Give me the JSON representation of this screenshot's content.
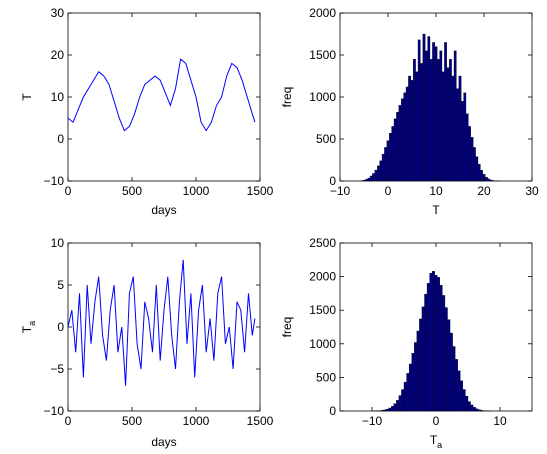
{
  "chart_data": [
    {
      "type": "line",
      "xlabel": "days",
      "ylabel": "T",
      "xlim": [
        0,
        1500
      ],
      "ylim": [
        -10,
        30
      ],
      "xticks": [
        "0",
        "500",
        "1000",
        "1500"
      ],
      "yticks": [
        "−10",
        "0",
        "10",
        "20",
        "30"
      ],
      "grid": false,
      "series_color": "#0000ff",
      "x": [
        0,
        40,
        80,
        120,
        160,
        200,
        240,
        280,
        320,
        360,
        400,
        440,
        480,
        520,
        560,
        600,
        640,
        680,
        720,
        760,
        800,
        840,
        880,
        920,
        960,
        1000,
        1040,
        1080,
        1120,
        1160,
        1200,
        1240,
        1280,
        1320,
        1360,
        1400,
        1440,
        1460
      ],
      "y": [
        5,
        4,
        7,
        10,
        12,
        14,
        16,
        15,
        13,
        9,
        5,
        2,
        3,
        6,
        10,
        13,
        14,
        15,
        14,
        11,
        8,
        12,
        19,
        18,
        14,
        10,
        4,
        2,
        4,
        8,
        10,
        15,
        18,
        17,
        14,
        10,
        6,
        4
      ]
    },
    {
      "type": "bar",
      "xlabel": "T",
      "ylabel": "freq",
      "xlim": [
        -10,
        30
      ],
      "ylim": [
        0,
        2000
      ],
      "xticks": [
        "−10",
        "0",
        "10",
        "20",
        "30"
      ],
      "yticks": [
        "0",
        "500",
        "1000",
        "1500",
        "2000"
      ],
      "grid": false,
      "bar_color": "#000080",
      "bin_width": 0.5,
      "x": [
        -5.5,
        -5,
        -4.5,
        -4,
        -3.5,
        -3,
        -2.5,
        -2,
        -1.5,
        -1,
        -0.5,
        0,
        0.5,
        1,
        1.5,
        2,
        2.5,
        3,
        3.5,
        4,
        4.5,
        5,
        5.5,
        6,
        6.5,
        7,
        7.5,
        8,
        8.5,
        9,
        9.5,
        10,
        10.5,
        11,
        11.5,
        12,
        12.5,
        13,
        13.5,
        14,
        14.5,
        15,
        15.5,
        16,
        16.5,
        17,
        17.5,
        18,
        18.5,
        19,
        19.5,
        20,
        20.5,
        21,
        21.5,
        22,
        22.5,
        23
      ],
      "values": [
        3,
        10,
        20,
        35,
        60,
        90,
        130,
        180,
        240,
        320,
        400,
        480,
        570,
        650,
        740,
        820,
        900,
        980,
        1050,
        1120,
        1250,
        1200,
        1450,
        1300,
        1680,
        1400,
        1750,
        1550,
        1720,
        1450,
        1650,
        1600,
        1450,
        1550,
        1300,
        1650,
        1350,
        1450,
        1250,
        1550,
        1100,
        1250,
        950,
        1050,
        800,
        650,
        520,
        400,
        290,
        200,
        130,
        80,
        45,
        25,
        12,
        6,
        3,
        1
      ]
    },
    {
      "type": "line",
      "xlabel": "days",
      "ylabel": "T",
      "ylabel_subscript": "a",
      "xlim": [
        0,
        1500
      ],
      "ylim": [
        -10,
        10
      ],
      "xticks": [
        "0",
        "500",
        "1000",
        "1500"
      ],
      "yticks": [
        "−10",
        "−5",
        "0",
        "5",
        "10"
      ],
      "grid": false,
      "series_color": "#0000ff",
      "x": [
        0,
        30,
        60,
        90,
        120,
        150,
        180,
        210,
        240,
        270,
        300,
        330,
        360,
        390,
        420,
        450,
        480,
        510,
        540,
        570,
        600,
        630,
        660,
        690,
        720,
        750,
        780,
        810,
        840,
        870,
        900,
        930,
        960,
        990,
        1020,
        1050,
        1080,
        1110,
        1140,
        1170,
        1200,
        1230,
        1260,
        1290,
        1320,
        1350,
        1380,
        1410,
        1440,
        1460
      ],
      "y": [
        0,
        2,
        -3,
        4,
        -6,
        5,
        -2,
        3,
        6,
        -1,
        -4,
        2,
        5,
        -3,
        0,
        -7,
        4,
        6,
        -2,
        -5,
        3,
        1,
        -3,
        5,
        -4,
        2,
        6,
        -1,
        -5,
        3,
        8,
        -2,
        4,
        -6,
        2,
        5,
        -3,
        1,
        -4,
        4,
        6,
        -2,
        0,
        -5,
        3,
        2,
        -3,
        4,
        -1,
        1
      ]
    },
    {
      "type": "bar",
      "xlabel": "T",
      "xlabel_subscript": "a",
      "ylabel": "freq",
      "xlim": [
        -15,
        15
      ],
      "ylim": [
        0,
        2500
      ],
      "xticks": [
        "−10",
        "0",
        "10"
      ],
      "yticks": [
        "0",
        "500",
        "1000",
        "1500",
        "2000",
        "2500"
      ],
      "grid": false,
      "bar_color": "#000080",
      "bin_width": 0.4,
      "x": [
        -9.6,
        -9.2,
        -8.8,
        -8.4,
        -8,
        -7.6,
        -7.2,
        -6.8,
        -6.4,
        -6,
        -5.6,
        -5.2,
        -4.8,
        -4.4,
        -4,
        -3.6,
        -3.2,
        -2.8,
        -2.4,
        -2,
        -1.6,
        -1.2,
        -0.8,
        -0.4,
        0,
        0.4,
        0.8,
        1.2,
        1.6,
        2,
        2.4,
        2.8,
        3.2,
        3.6,
        4,
        4.4,
        4.8,
        5.2,
        5.6,
        6,
        6.4,
        6.8,
        7.2,
        7.6,
        8,
        8.4
      ],
      "values": [
        2,
        4,
        6,
        10,
        18,
        28,
        45,
        70,
        110,
        160,
        230,
        320,
        430,
        560,
        700,
        860,
        1020,
        1190,
        1370,
        1550,
        1740,
        1900,
        2050,
        2080,
        2020,
        1990,
        1870,
        1720,
        1540,
        1360,
        1160,
        960,
        770,
        600,
        450,
        320,
        220,
        140,
        90,
        55,
        32,
        18,
        10,
        5,
        3,
        1
      ]
    }
  ]
}
